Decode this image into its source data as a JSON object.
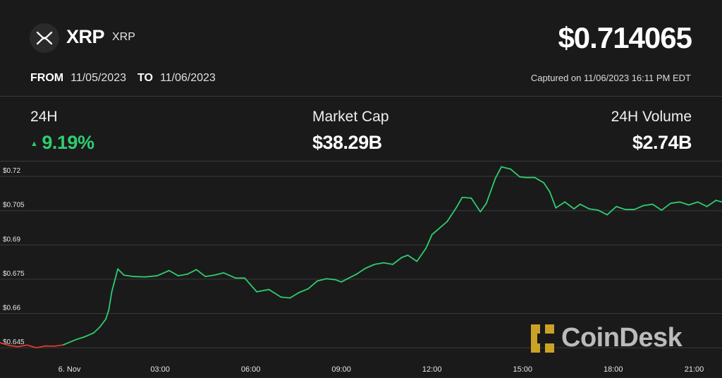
{
  "header": {
    "asset_name": "XRP",
    "asset_symbol": "XRP",
    "price": "$0.714065",
    "from_label": "FROM",
    "from_date": "11/05/2023",
    "to_label": "TO",
    "to_date": "11/06/2023",
    "captured": "Captured on 11/06/2023 16:11 PM EDT"
  },
  "stats": {
    "change_label": "24H",
    "change_value": "9.19%",
    "change_direction": "up",
    "market_cap_label": "Market Cap",
    "market_cap_value": "$38.29B",
    "volume_label": "24H Volume",
    "volume_value": "$2.74B"
  },
  "watermark": {
    "brand": "CoinDesk"
  },
  "icons": {
    "asset_logo": "xrp-logo-icon",
    "brand_logo": "coindesk-logo-icon"
  },
  "colors": {
    "up": "#2ecc71",
    "down": "#e0392b",
    "background": "#1a1a1a",
    "grid": "#3a3a3a"
  },
  "chart_data": {
    "type": "line",
    "x_ticks": [
      "6. Nov",
      "03:00",
      "06:00",
      "09:00",
      "12:00",
      "15:00",
      "18:00",
      "21:00"
    ],
    "y_ticks": [
      "$0.72",
      "$0.705",
      "$0.69",
      "$0.675",
      "$0.66",
      "$0.645"
    ],
    "y_tick_values": [
      0.72,
      0.705,
      0.69,
      0.675,
      0.66,
      0.645
    ],
    "ylim": [
      0.6395,
      0.7265
    ],
    "xlim": [
      -2.3,
      21.6
    ],
    "grid": true,
    "series": [
      {
        "x": [
          -2.3,
          -2.0,
          -1.7,
          -1.4,
          -1.1,
          -0.8,
          -0.5,
          -0.2,
          0.2,
          0.5,
          0.8,
          1.0,
          1.2,
          1.3,
          1.4,
          1.6,
          1.8,
          2.1,
          2.5,
          2.9,
          3.3,
          3.6,
          3.9,
          4.2,
          4.5,
          4.8,
          5.1,
          5.5,
          5.8,
          6.2,
          6.6,
          7.0,
          7.3,
          7.6,
          7.9,
          8.2,
          8.5,
          8.8,
          9.0,
          9.2,
          9.5,
          9.8,
          10.1,
          10.4,
          10.7,
          11.0,
          11.2,
          11.5,
          11.8,
          12.0,
          12.2,
          12.5,
          12.8,
          13.0,
          13.3,
          13.6,
          13.8,
          14.1,
          14.3,
          14.6,
          14.9,
          15.1,
          15.4,
          15.7,
          15.9,
          16.1,
          16.4,
          16.7,
          16.9,
          17.2,
          17.5,
          17.8,
          18.1,
          18.4,
          18.7,
          19.0,
          19.3,
          19.6,
          19.9,
          20.2,
          20.5,
          20.8,
          21.1,
          21.4,
          21.6
        ],
        "y": [
          0.6472,
          0.646,
          0.6455,
          0.6462,
          0.645,
          0.6458,
          0.6457,
          0.6463,
          0.6485,
          0.6498,
          0.6515,
          0.654,
          0.6575,
          0.6615,
          0.6695,
          0.6795,
          0.6768,
          0.6762,
          0.676,
          0.6765,
          0.6788,
          0.6765,
          0.6772,
          0.6792,
          0.6762,
          0.6768,
          0.6778,
          0.6755,
          0.6755,
          0.6695,
          0.6705,
          0.6672,
          0.6668,
          0.6692,
          0.6708,
          0.6742,
          0.6752,
          0.6748,
          0.6738,
          0.6752,
          0.6772,
          0.6798,
          0.6815,
          0.6822,
          0.6815,
          0.6845,
          0.6855,
          0.6828,
          0.6885,
          0.6945,
          0.6968,
          0.7002,
          0.7062,
          0.7108,
          0.7105,
          0.7045,
          0.7082,
          0.7192,
          0.7242,
          0.7232,
          0.7198,
          0.7195,
          0.7195,
          0.7172,
          0.7132,
          0.7062,
          0.7088,
          0.7058,
          0.7078,
          0.7058,
          0.7052,
          0.7032,
          0.7068,
          0.7055,
          0.7055,
          0.7072,
          0.7078,
          0.7052,
          0.7082,
          0.7088,
          0.7075,
          0.7088,
          0.7068,
          0.7095,
          0.7088
        ]
      }
    ]
  }
}
